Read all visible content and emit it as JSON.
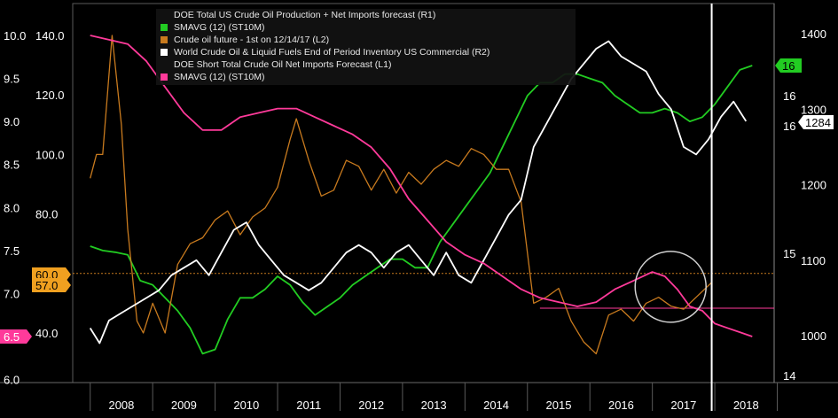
{
  "chart_data": {
    "type": "line",
    "x_categories": [
      "2008",
      "2009",
      "2010",
      "2011",
      "2012",
      "2013",
      "2014",
      "2015",
      "2016",
      "2017",
      "2018"
    ],
    "legend": [
      {
        "label": "DOE Total US Crude Oil Production + Net Imports forecast (R1)",
        "color": "",
        "marker": "none"
      },
      {
        "label": "SMAVG (12) (ST10M)",
        "color": "#22cc22",
        "marker": "square"
      },
      {
        "label": "Crude oil future - 1st on 12/14/17 (L2)",
        "color": "#c87a1e",
        "marker": "square"
      },
      {
        "label": "World Crude Oil & Liquid Fuels End of Period Inventory US Commercial (R2)",
        "color": "#ffffff",
        "marker": "square"
      },
      {
        "label": "DOE Short Total Crude Oil Net Imports Forecast (L1)",
        "color": "",
        "marker": "none"
      },
      {
        "label": "SMAVG (12) (ST10M)",
        "color": "#ff3a9a",
        "marker": "square"
      }
    ],
    "left_axis_1": {
      "ticks": [
        "10.0",
        "9.5",
        "9.0",
        "8.5",
        "8.0",
        "7.5",
        "7.0",
        "6.0"
      ],
      "values": [
        10.0,
        9.5,
        9.0,
        8.5,
        8.0,
        7.5,
        7.0,
        6.0
      ]
    },
    "left_axis_2": {
      "ticks": [
        "140.0",
        "120.0",
        "100.0",
        "80.0",
        "60.0",
        "57.0",
        "40.0"
      ],
      "values": [
        140,
        120,
        100,
        80,
        60,
        57,
        40
      ]
    },
    "right_axis_1": {
      "ticks": [
        "16",
        "16",
        "16",
        "15",
        "14"
      ]
    },
    "right_axis_2": {
      "ticks": [
        "1400",
        "1300",
        "1200",
        "1100",
        "1000"
      ],
      "values": [
        1400,
        1300,
        1200,
        1100,
        1000
      ]
    },
    "tags": [
      {
        "text": "16",
        "color": "#22cc22",
        "axis": "right"
      },
      {
        "text": "1284",
        "color": "#ffffff",
        "axis": "right"
      },
      {
        "text": "60.0",
        "color": "#f0a020",
        "axis": "left"
      },
      {
        "text": "57.0",
        "color": "#f0a020",
        "axis": "left"
      },
      {
        "text": "6.5",
        "color": "#ff3a9a",
        "axis": "left"
      }
    ],
    "series": [
      {
        "name": "SMAVG (12) (ST10M)",
        "color": "#22cc22",
        "axis": "L1",
        "x": [
          2008.0,
          2008.2,
          2008.4,
          2008.6,
          2008.8,
          2009.0,
          2009.2,
          2009.4,
          2009.6,
          2009.8,
          2010.0,
          2010.2,
          2010.4,
          2010.6,
          2010.8,
          2011.0,
          2011.2,
          2011.4,
          2011.6,
          2011.8,
          2012.0,
          2012.2,
          2012.4,
          2012.6,
          2012.8,
          2013.0,
          2013.2,
          2013.4,
          2013.6,
          2013.8,
          2014.0,
          2014.2,
          2014.4,
          2014.6,
          2014.8,
          2015.0,
          2015.2,
          2015.4,
          2015.6,
          2015.8,
          2016.0,
          2016.2,
          2016.4,
          2016.6,
          2016.8,
          2017.0,
          2017.2,
          2017.4,
          2017.6,
          2017.8,
          2018.0,
          2018.2,
          2018.4,
          2018.6
        ],
        "y": [
          7.55,
          7.5,
          7.48,
          7.45,
          7.15,
          7.1,
          6.95,
          6.8,
          6.6,
          6.3,
          6.35,
          6.7,
          6.95,
          6.95,
          7.05,
          7.2,
          7.1,
          6.9,
          6.75,
          6.85,
          6.95,
          7.1,
          7.2,
          7.3,
          7.4,
          7.4,
          7.3,
          7.3,
          7.6,
          7.8,
          8.0,
          8.2,
          8.4,
          8.7,
          9.0,
          9.3,
          9.45,
          9.45,
          9.55,
          9.55,
          9.5,
          9.45,
          9.3,
          9.2,
          9.1,
          9.1,
          9.15,
          9.1,
          9.0,
          9.05,
          9.2,
          9.4,
          9.6,
          9.65
        ]
      },
      {
        "name": "Crude oil future - 1st on 12/14/17 (L2)",
        "color": "#c87a1e",
        "axis": "L2",
        "x": [
          2008.0,
          2008.1,
          2008.2,
          2008.35,
          2008.5,
          2008.6,
          2008.75,
          2008.85,
          2009.0,
          2009.2,
          2009.4,
          2009.6,
          2009.8,
          2010.0,
          2010.2,
          2010.4,
          2010.6,
          2010.8,
          2011.0,
          2011.2,
          2011.3,
          2011.5,
          2011.7,
          2011.9,
          2012.1,
          2012.3,
          2012.5,
          2012.7,
          2012.9,
          2013.1,
          2013.3,
          2013.5,
          2013.7,
          2013.9,
          2014.1,
          2014.3,
          2014.5,
          2014.7,
          2014.9,
          2015.1,
          2015.3,
          2015.5,
          2015.7,
          2015.9,
          2016.1,
          2016.3,
          2016.5,
          2016.7,
          2016.9,
          2017.1,
          2017.3,
          2017.5,
          2017.7,
          2017.95
        ],
        "y": [
          92,
          100,
          100,
          140,
          110,
          75,
          44,
          40,
          50,
          40,
          63,
          70,
          72,
          78,
          81,
          73,
          79,
          82,
          89,
          105,
          112,
          98,
          86,
          88,
          98,
          96,
          88,
          95,
          87,
          94,
          90,
          95,
          98,
          96,
          102,
          100,
          95,
          95,
          84,
          50,
          52,
          55,
          44,
          37,
          33,
          46,
          48,
          44,
          50,
          52,
          49,
          48,
          52,
          57
        ]
      },
      {
        "name": "World Crude Oil & Liquid Fuels End of Period Inventory US Commercial (R2)",
        "color": "#ffffff",
        "axis": "R2",
        "x": [
          2008.0,
          2008.15,
          2008.3,
          2008.5,
          2008.7,
          2008.9,
          2009.1,
          2009.3,
          2009.5,
          2009.7,
          2009.9,
          2010.1,
          2010.3,
          2010.5,
          2010.7,
          2010.9,
          2011.1,
          2011.3,
          2011.5,
          2011.7,
          2011.9,
          2012.1,
          2012.3,
          2012.5,
          2012.7,
          2012.9,
          2013.1,
          2013.3,
          2013.5,
          2013.7,
          2013.9,
          2014.1,
          2014.3,
          2014.5,
          2014.7,
          2014.9,
          2015.1,
          2015.3,
          2015.5,
          2015.7,
          2015.9,
          2016.1,
          2016.3,
          2016.5,
          2016.7,
          2016.9,
          2017.1,
          2017.3,
          2017.5,
          2017.7,
          2017.9,
          2018.1,
          2018.3,
          2018.5
        ],
        "y": [
          1010,
          990,
          1020,
          1030,
          1040,
          1050,
          1060,
          1080,
          1090,
          1100,
          1080,
          1110,
          1140,
          1150,
          1120,
          1100,
          1080,
          1070,
          1060,
          1070,
          1090,
          1110,
          1120,
          1110,
          1090,
          1110,
          1120,
          1100,
          1080,
          1110,
          1080,
          1070,
          1100,
          1130,
          1160,
          1180,
          1250,
          1280,
          1310,
          1340,
          1360,
          1380,
          1390,
          1370,
          1360,
          1350,
          1320,
          1300,
          1250,
          1240,
          1260,
          1290,
          1310,
          1284
        ]
      },
      {
        "name": "SMAVG (12) (ST10M)",
        "color": "#ff3a9a",
        "axis": "L1",
        "x": [
          2008.0,
          2008.3,
          2008.6,
          2008.9,
          2009.2,
          2009.5,
          2009.8,
          2010.1,
          2010.4,
          2010.7,
          2011.0,
          2011.3,
          2011.6,
          2011.9,
          2012.2,
          2012.5,
          2012.8,
          2013.1,
          2013.4,
          2013.7,
          2014.0,
          2014.3,
          2014.6,
          2014.9,
          2015.2,
          2015.5,
          2015.8,
          2016.1,
          2016.4,
          2016.7,
          2017.0,
          2017.2,
          2017.4,
          2017.6,
          2017.8,
          2018.0,
          2018.2,
          2018.4,
          2018.6
        ],
        "y": [
          10.0,
          9.95,
          9.9,
          9.7,
          9.4,
          9.1,
          8.9,
          8.9,
          9.05,
          9.1,
          9.15,
          9.15,
          9.05,
          8.95,
          8.85,
          8.7,
          8.45,
          8.1,
          7.85,
          7.6,
          7.45,
          7.35,
          7.2,
          7.05,
          6.95,
          6.9,
          6.85,
          6.9,
          7.05,
          7.15,
          7.25,
          7.2,
          7.05,
          6.85,
          6.8,
          6.65,
          6.6,
          6.55,
          6.5
        ]
      }
    ],
    "hlines": [
      {
        "value": 60,
        "axis": "L2",
        "color": "#c87a1e",
        "style": "dotted"
      },
      {
        "value": 6.83,
        "axis": "L1",
        "color": "#ff3a9a",
        "style": "solid"
      }
    ],
    "vline": {
      "x": 2017.95,
      "color": "#ffffff"
    },
    "circle_annotation": {
      "x": 2017.15,
      "y": 57,
      "axis": "L2"
    }
  }
}
